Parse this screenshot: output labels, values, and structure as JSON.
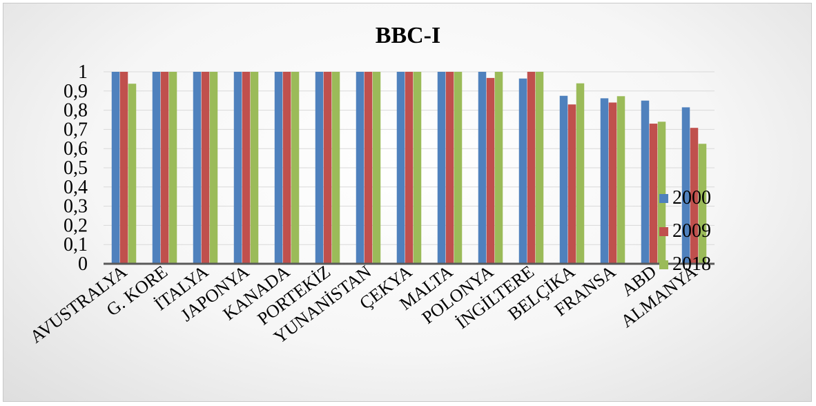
{
  "chart_data": {
    "type": "bar",
    "title": "BBC-I",
    "xlabel": "",
    "ylabel": "",
    "ylim": [
      0,
      1
    ],
    "yticks": [
      "0",
      "0,1",
      "0,2",
      "0,3",
      "0,4",
      "0,5",
      "0,6",
      "0,7",
      "0,8",
      "0,9",
      "1"
    ],
    "grid": true,
    "legend_position": "right",
    "categories": [
      "AVUSTRALYA",
      "G. KORE",
      "İTALYA",
      "JAPONYA",
      "KANADA",
      "PORTEKİZ",
      "YUNANİSTAN",
      "ÇEKYA",
      "MALTA",
      "POLONYA",
      "İNGİLTERE",
      "BELÇİKA",
      "FRANSA",
      "ABD",
      "ALMANYA"
    ],
    "series": [
      {
        "name": "2000",
        "color": "#4f81bd",
        "values": [
          1,
          1,
          1,
          1,
          1,
          1,
          1,
          1,
          1,
          1,
          0.965,
          0.875,
          0.862,
          0.85,
          0.815
        ]
      },
      {
        "name": "2009",
        "color": "#c0504d",
        "values": [
          1,
          1,
          1,
          1,
          1,
          1,
          1,
          1,
          1,
          0.968,
          1,
          0.83,
          0.84,
          0.73,
          0.708
        ]
      },
      {
        "name": "2018",
        "color": "#9bbb59",
        "values": [
          0.938,
          1,
          1,
          1,
          1,
          1,
          1,
          1,
          1,
          1,
          1,
          0.94,
          0.873,
          0.74,
          0.625
        ]
      }
    ]
  }
}
